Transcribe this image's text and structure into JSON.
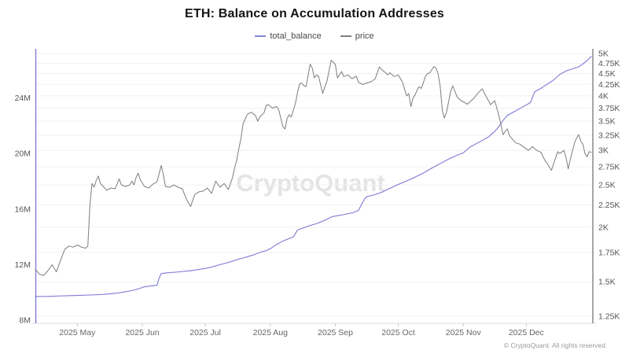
{
  "title": "ETH: Balance on Accumulation Addresses",
  "legend": {
    "items": [
      {
        "label": "total_balance",
        "color": "#8884d8"
      },
      {
        "label": "price",
        "color": "#7d7d7d"
      }
    ]
  },
  "watermark": "CryptoQuant",
  "copyright": "© CryptoQuant. All rights reserved",
  "colors": {
    "balance_line": "#8884d8",
    "price_line": "#7d7d7d",
    "left_axis_line": "#8884d8",
    "right_axis_line": "#a6a6a6",
    "bottom_axis_line": "#dddddd",
    "gridline": "#f0f0f0",
    "tick_label": "#555555",
    "x_label": "#666666",
    "tick_mark": "#cccccc"
  },
  "chart_data": {
    "type": "line",
    "title": "ETH: Balance on Accumulation Addresses",
    "x_unit": "days from 2025-04-11",
    "x_total_days": 265,
    "x_axis": {
      "ticks": [
        {
          "day": 20,
          "label": "2025 May"
        },
        {
          "day": 51,
          "label": "2025 Jun"
        },
        {
          "day": 81,
          "label": "2025 Jul"
        },
        {
          "day": 112,
          "label": "2025 Aug"
        },
        {
          "day": 143,
          "label": "2025 Sep"
        },
        {
          "day": 173,
          "label": "2025 Oct"
        },
        {
          "day": 204,
          "label": "2025 Nov"
        },
        {
          "day": 234,
          "label": "2025 Dec"
        }
      ]
    },
    "left_axis": {
      "scale": "linear",
      "unit": "M ETH",
      "top": 27.55,
      "bottom": 7.77,
      "ticks": [
        {
          "value": 8,
          "label": "8M"
        },
        {
          "value": 12,
          "label": "12M"
        },
        {
          "value": 16,
          "label": "16M"
        },
        {
          "value": 20,
          "label": "20M"
        },
        {
          "value": 24,
          "label": "24M"
        }
      ]
    },
    "right_axis": {
      "scale": "log",
      "unit": "USD (K)",
      "top": 5.13,
      "bottom": 1.204,
      "ticks": [
        {
          "value": 5,
          "label": "5K"
        },
        {
          "value": 4.75,
          "label": "4.75K"
        },
        {
          "value": 4.5,
          "label": "4.5K"
        },
        {
          "value": 4.25,
          "label": "4.25K"
        },
        {
          "value": 4,
          "label": "4K"
        },
        {
          "value": 3.75,
          "label": "3.75K"
        },
        {
          "value": 3.5,
          "label": "3.5K"
        },
        {
          "value": 3.25,
          "label": "3.25K"
        },
        {
          "value": 3,
          "label": "3K"
        },
        {
          "value": 2.75,
          "label": "2.75K"
        },
        {
          "value": 2.5,
          "label": "2.5K"
        },
        {
          "value": 2.25,
          "label": "2.25K"
        },
        {
          "value": 2,
          "label": "2K"
        },
        {
          "value": 1.75,
          "label": "1.75K"
        },
        {
          "value": 1.5,
          "label": "1.5K"
        },
        {
          "value": 1.25,
          "label": "1.25K"
        }
      ]
    },
    "series": [
      {
        "name": "total_balance",
        "axis": "left",
        "color": "#8884d8",
        "width": 1.2,
        "points": [
          [
            0,
            9.7
          ],
          [
            4,
            9.71
          ],
          [
            8,
            9.72
          ],
          [
            12,
            9.74
          ],
          [
            16,
            9.76
          ],
          [
            20,
            9.78
          ],
          [
            24,
            9.8
          ],
          [
            28,
            9.82
          ],
          [
            32,
            9.85
          ],
          [
            36,
            9.9
          ],
          [
            40,
            9.97
          ],
          [
            44,
            10.07
          ],
          [
            48,
            10.2
          ],
          [
            52,
            10.4
          ],
          [
            55,
            10.46
          ],
          [
            58,
            10.52
          ],
          [
            59,
            11.05
          ],
          [
            60,
            11.35
          ],
          [
            62,
            11.4
          ],
          [
            66,
            11.44
          ],
          [
            70,
            11.5
          ],
          [
            74,
            11.56
          ],
          [
            78,
            11.65
          ],
          [
            81,
            11.72
          ],
          [
            84,
            11.82
          ],
          [
            88,
            12.0
          ],
          [
            92,
            12.15
          ],
          [
            96,
            12.35
          ],
          [
            100,
            12.52
          ],
          [
            104,
            12.7
          ],
          [
            107,
            12.88
          ],
          [
            110,
            13.0
          ],
          [
            112,
            13.15
          ],
          [
            115,
            13.45
          ],
          [
            118,
            13.7
          ],
          [
            121,
            13.88
          ],
          [
            123,
            14.0
          ],
          [
            125,
            14.5
          ],
          [
            128,
            14.65
          ],
          [
            131,
            14.82
          ],
          [
            134,
            14.95
          ],
          [
            138,
            15.2
          ],
          [
            141,
            15.42
          ],
          [
            143,
            15.5
          ],
          [
            147,
            15.6
          ],
          [
            151,
            15.72
          ],
          [
            154,
            15.9
          ],
          [
            155,
            16.2
          ],
          [
            157,
            16.75
          ],
          [
            158,
            16.9
          ],
          [
            161,
            17.0
          ],
          [
            165,
            17.2
          ],
          [
            169,
            17.5
          ],
          [
            173,
            17.78
          ],
          [
            177,
            18.02
          ],
          [
            181,
            18.3
          ],
          [
            185,
            18.6
          ],
          [
            189,
            18.95
          ],
          [
            193,
            19.28
          ],
          [
            197,
            19.6
          ],
          [
            201,
            19.88
          ],
          [
            204,
            20.05
          ],
          [
            207,
            20.45
          ],
          [
            210,
            20.7
          ],
          [
            213,
            20.95
          ],
          [
            216,
            21.2
          ],
          [
            219,
            21.6
          ],
          [
            221,
            21.95
          ],
          [
            223,
            22.4
          ],
          [
            225,
            22.75
          ],
          [
            228,
            23.0
          ],
          [
            231,
            23.25
          ],
          [
            234,
            23.5
          ],
          [
            236,
            23.68
          ],
          [
            238,
            24.45
          ],
          [
            241,
            24.7
          ],
          [
            244,
            25.0
          ],
          [
            247,
            25.3
          ],
          [
            250,
            25.7
          ],
          [
            253,
            25.95
          ],
          [
            256,
            26.1
          ],
          [
            259,
            26.25
          ],
          [
            261,
            26.45
          ],
          [
            263,
            26.7
          ],
          [
            265,
            27.0
          ]
        ]
      },
      {
        "name": "price",
        "axis": "right",
        "color": "#7d7d7d",
        "width": 1,
        "points": [
          [
            0,
            1.6
          ],
          [
            2,
            1.56
          ],
          [
            4,
            1.55
          ],
          [
            6,
            1.59
          ],
          [
            8,
            1.64
          ],
          [
            10,
            1.58
          ],
          [
            12,
            1.68
          ],
          [
            14,
            1.78
          ],
          [
            16,
            1.81
          ],
          [
            18,
            1.8
          ],
          [
            20,
            1.82
          ],
          [
            22,
            1.8
          ],
          [
            24,
            1.79
          ],
          [
            25,
            1.81
          ],
          [
            26,
            2.25
          ],
          [
            27,
            2.52
          ],
          [
            28,
            2.47
          ],
          [
            29,
            2.56
          ],
          [
            30,
            2.62
          ],
          [
            31,
            2.52
          ],
          [
            32,
            2.49
          ],
          [
            34,
            2.43
          ],
          [
            36,
            2.46
          ],
          [
            38,
            2.45
          ],
          [
            40,
            2.58
          ],
          [
            41,
            2.5
          ],
          [
            43,
            2.48
          ],
          [
            45,
            2.5
          ],
          [
            46,
            2.55
          ],
          [
            47,
            2.5
          ],
          [
            48,
            2.6
          ],
          [
            49,
            2.66
          ],
          [
            50,
            2.57
          ],
          [
            52,
            2.48
          ],
          [
            54,
            2.46
          ],
          [
            56,
            2.51
          ],
          [
            58,
            2.54
          ],
          [
            60,
            2.77
          ],
          [
            61,
            2.64
          ],
          [
            62,
            2.48
          ],
          [
            64,
            2.47
          ],
          [
            66,
            2.5
          ],
          [
            68,
            2.47
          ],
          [
            70,
            2.45
          ],
          [
            72,
            2.32
          ],
          [
            74,
            2.23
          ],
          [
            76,
            2.38
          ],
          [
            78,
            2.41
          ],
          [
            80,
            2.42
          ],
          [
            82,
            2.46
          ],
          [
            84,
            2.39
          ],
          [
            86,
            2.55
          ],
          [
            88,
            2.47
          ],
          [
            90,
            2.52
          ],
          [
            92,
            2.44
          ],
          [
            94,
            2.6
          ],
          [
            95,
            2.74
          ],
          [
            96,
            2.85
          ],
          [
            97,
            3.03
          ],
          [
            98,
            3.2
          ],
          [
            99,
            3.45
          ],
          [
            101,
            3.63
          ],
          [
            103,
            3.67
          ],
          [
            105,
            3.6
          ],
          [
            106,
            3.5
          ],
          [
            107,
            3.58
          ],
          [
            109,
            3.66
          ],
          [
            110,
            3.8
          ],
          [
            111,
            3.82
          ],
          [
            113,
            3.75
          ],
          [
            115,
            3.78
          ],
          [
            116,
            3.72
          ],
          [
            118,
            3.4
          ],
          [
            119,
            3.36
          ],
          [
            120,
            3.55
          ],
          [
            121,
            3.62
          ],
          [
            122,
            3.58
          ],
          [
            124,
            3.85
          ],
          [
            125,
            4.08
          ],
          [
            126,
            4.27
          ],
          [
            127,
            4.28
          ],
          [
            128,
            4.22
          ],
          [
            129,
            4.2
          ],
          [
            131,
            4.73
          ],
          [
            132,
            4.63
          ],
          [
            133,
            4.4
          ],
          [
            134,
            4.47
          ],
          [
            135,
            4.43
          ],
          [
            137,
            4.05
          ],
          [
            138,
            4.2
          ],
          [
            139,
            4.32
          ],
          [
            141,
            4.83
          ],
          [
            142,
            4.78
          ],
          [
            143,
            4.72
          ],
          [
            144,
            4.4
          ],
          [
            145,
            4.47
          ],
          [
            146,
            4.55
          ],
          [
            147,
            4.43
          ],
          [
            149,
            4.47
          ],
          [
            150,
            4.42
          ],
          [
            151,
            4.38
          ],
          [
            153,
            4.44
          ],
          [
            154,
            4.3
          ],
          [
            156,
            4.25
          ],
          [
            158,
            4.28
          ],
          [
            160,
            4.31
          ],
          [
            162,
            4.38
          ],
          [
            164,
            4.66
          ],
          [
            165,
            4.6
          ],
          [
            167,
            4.52
          ],
          [
            168,
            4.47
          ],
          [
            169,
            4.52
          ],
          [
            171,
            4.43
          ],
          [
            173,
            4.47
          ],
          [
            175,
            4.3
          ],
          [
            177,
            4.0
          ],
          [
            178,
            4.05
          ],
          [
            179,
            3.78
          ],
          [
            180,
            3.95
          ],
          [
            181,
            4.02
          ],
          [
            182,
            4.13
          ],
          [
            183,
            4.2
          ],
          [
            184,
            4.16
          ],
          [
            186,
            4.44
          ],
          [
            187,
            4.5
          ],
          [
            188,
            4.52
          ],
          [
            190,
            4.67
          ],
          [
            191,
            4.63
          ],
          [
            192,
            4.5
          ],
          [
            193,
            4.2
          ],
          [
            194,
            3.7
          ],
          [
            195,
            3.56
          ],
          [
            196,
            3.67
          ],
          [
            198,
            4.1
          ],
          [
            199,
            4.22
          ],
          [
            201,
            3.98
          ],
          [
            203,
            3.9
          ],
          [
            206,
            3.83
          ],
          [
            209,
            3.95
          ],
          [
            211,
            4.06
          ],
          [
            213,
            4.15
          ],
          [
            215,
            3.98
          ],
          [
            217,
            3.82
          ],
          [
            219,
            3.9
          ],
          [
            221,
            3.6
          ],
          [
            223,
            3.26
          ],
          [
            224,
            3.32
          ],
          [
            225,
            3.36
          ],
          [
            226,
            3.24
          ],
          [
            227,
            3.2
          ],
          [
            229,
            3.12
          ],
          [
            231,
            3.1
          ],
          [
            233,
            3.05
          ],
          [
            235,
            3.0
          ],
          [
            237,
            3.06
          ],
          [
            239,
            3.0
          ],
          [
            241,
            2.97
          ],
          [
            243,
            2.84
          ],
          [
            244,
            2.8
          ],
          [
            246,
            2.7
          ],
          [
            247,
            2.79
          ],
          [
            249,
            2.98
          ],
          [
            250,
            2.95
          ],
          [
            252,
            3.0
          ],
          [
            253,
            2.88
          ],
          [
            254,
            2.72
          ],
          [
            255,
            2.86
          ],
          [
            257,
            3.12
          ],
          [
            258,
            3.2
          ],
          [
            259,
            3.26
          ],
          [
            260,
            3.15
          ],
          [
            261,
            3.1
          ],
          [
            262,
            2.95
          ],
          [
            263,
            2.9
          ],
          [
            264,
            2.98
          ],
          [
            265,
            2.97
          ]
        ]
      }
    ]
  }
}
